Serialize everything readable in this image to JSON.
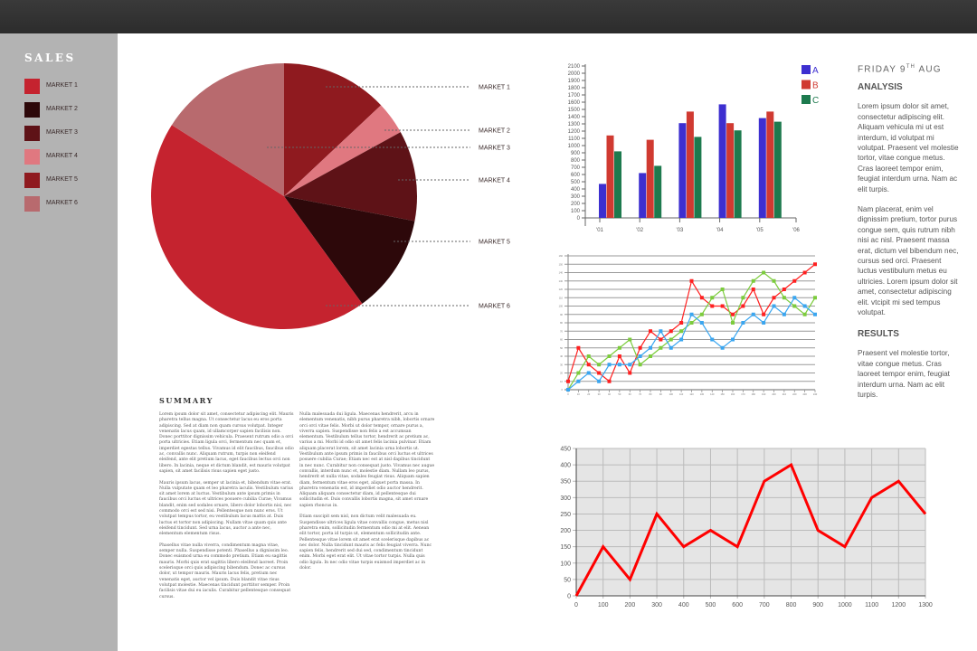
{
  "sidebar": {
    "title": "SALES",
    "legend": [
      {
        "label": "MARKET 1",
        "color": "#c5232f"
      },
      {
        "label": "MARKET 2",
        "color": "#2d080a"
      },
      {
        "label": "MARKET 3",
        "color": "#5e1217"
      },
      {
        "label": "MARKET 4",
        "color": "#e07880"
      },
      {
        "label": "MARKET 5",
        "color": "#8f1a1f"
      },
      {
        "label": "MARKET 6",
        "color": "#b86a6e"
      }
    ]
  },
  "summary": {
    "title": "SUMMARY",
    "paragraphs": [
      "Lorem ipsum dolor sit amet, consectetur adipiscing elit. Mauris pharetra tellus magna. Ut consectetur lacus eu eros porta adipiscing. Sed at diam non quam cursus volutpat. Integer venenatis lacus quam, id ullamcorper sapien facilisis non. Donec porttitor dignissim vehicula. Praesent rutrum odio a orci porta ultricies. Etiam ligula orci, fermentum nec quam et, imperdiet egestas tellus. Vivamus id elit faucibus, faucibus odio ac, convallis nunc. Aliquam rutrum, turpis non eleifend eleifend, ante elit pretium lacus, eget faucibus lectus orci non libero. In lacinia, neque et dictum blandit, est mauris volutpat sapien, sit amet facilisis risus sapien eget justo.",
      "Mauris ipsum lacus, semper ut lacinia et, bibendum vitae erat. Nulla vulputate quam et leo pharetra iaculis. Vestibulum varius sit amet lorem at luctus. Vestibulum ante ipsum primis in faucibus orci luctus et ultrices posuere cubilia Curae; Vivamus blandit, enim sed sodales ornare, libero dolor lobortis nisi, nec commodo orci est sed nisi. Pellentesque non nunc eros. Ut volutpat tempus tortor, eu vestibulum lacus mattis at. Duis luctus et tortor non adipiscing. Nullam vitae quam quis ante eleifend tincidunt. Sed urna lacus, auctor a ante nec, elementum elementum risus.",
      "Phasellus vitae nulla viverra, condimentum magna vitae, semper nulla. Suspendisse potenti. Phasellus a dignissim leo. Donec euismod urna eu commodo pretium. Etiam eu sagittis mauris. Morbi quis erat sagittis libero eleifend laoreet. Proin scelerisque orci quis adipiscing bibendum. Donec ac cursus dolor, ut tempor mauris. Mauris lacus felis, pretium nec venenatis eget, auctor vel ipsum. Duis blandit vitae risus volutpat molestie. Maecenas tincidunt porttitor semper. Proin facilisis vitae dui eu iaculis. Curabitur pellentesque consequat cursus.",
      "Nulla malesuada dui ligula. Maecenas hendrerit, arcu in elementum venenatis, nibh purus pharetra nibh, lobortis ornare orci orci vitae felis. Morbi ut dolor tempor, ornare purus a, viverra sapien. Suspendisse non felis a est accumsan elementum. Vestibulum tellus tortor, hendrerit ac pretium ac, varius a mi. Morbi id odio sit amet felis lacinia pulvinar. Etiam aliquam placerat lorem, sit amet lacinia urna lobortis ut. Vestibulum ante ipsum primis in faucibus orci luctus et ultrices posuere cubilia Curae; Etiam nec est at nisl dapibus tincidunt in nec nunc. Curabitur non consequat justo. Vivamus nec augue convallis, interdum nunc et, molestie diam. Nullam leo purus, hendrerit et nulla vitae, sodales feugiat risus. Aliquam sapien diam, fermentum vitae eros eget, aliquet porta massa. In pharetra venenatis est, id imperdiet odio auctor hendrerit. Aliquam aliquam consectetur diam, id pellentesque dui sollicitudin et. Duis convallis lobortis magna, sit amet ornare sapien rhoncus in.",
      "Etiam suscipit sem nisl, non dictum velit malesuada eu. Suspendisse ultrices ligula vitae convallis congue, metus nisl pharetra enim, sollicitudin fermentum odio mi at elit. Aenean elit tortor, porta id turpis ut, elementum sollicitudin ante. Pellentesque vitae lorem sit amet erat scelerisque dapibus ac nec dolor. Nulla tincidunt mauris ac felis feugiat viverra. Nunc sapien felis, hendrerit sed dui sed, condimentum tincidunt enim. Morbi eget erat elit. Ut vitae tortor turpis. Nulla quis odio ligula. In nec odio vitae turpis euismod imperdiet ac in dolor."
    ]
  },
  "right": {
    "date": "FRIDAY 9",
    "date_sup": "TH",
    "date_month": " AUG",
    "analysis_title": "ANALYSIS",
    "analysis_p1": "Lorem ipsum dolor sit amet, consectetur adipiscing elit. Aliquam vehicula mi ut est interdum, id volutpat mi volutpat. Praesent vel molestie tortor, vitae congue metus. Cras laoreet tempor enim, feugiat interdum urna. Nam ac elit turpis.",
    "analysis_p2": "Nam placerat, enim vel dignissim pretium, tortor purus congue sem, quis rutrum nibh nisi ac nisl. Praesent massa erat, dictum vel bibendum nec, cursus sed orci. Praesent luctus vestibulum metus eu ultricies. Lorem ipsum dolor sit amet, consectetur adipiscing elit. vtcipit mi sed tempus volutpat.",
    "results_title": "RESULTS",
    "results_p": "Praesent vel molestie tortor, vitae congue metus. Cras laoreet tempor enim, feugiat interdum urna. Nam ac elit turpis."
  },
  "chart_data": [
    {
      "type": "pie",
      "slices": [
        {
          "label": "MARKET 5",
          "color": "#8f1a1f",
          "value": 13
        },
        {
          "label": "MARKET 4",
          "color": "#e07880",
          "value": 4
        },
        {
          "label": "MARKET 3",
          "color": "#5e1217",
          "value": 11
        },
        {
          "label": "MARKET 2",
          "color": "#2d080a",
          "value": 12
        },
        {
          "label": "MARKET 1",
          "color": "#c5232f",
          "value": 44
        },
        {
          "label": "MARKET 6",
          "color": "#b86a6e",
          "value": 16
        }
      ],
      "callouts": [
        "MARKET 1",
        "MARKET 2",
        "MARKET 3",
        "MARKET 4",
        "MARKET 5",
        "MARKET 6"
      ]
    },
    {
      "type": "bar",
      "categories": [
        "'01",
        "'02",
        "'03",
        "'04",
        "'05"
      ],
      "x_ticks": [
        "'01",
        "'02",
        "'03",
        "'04",
        "'05",
        "'06"
      ],
      "ylim": [
        0,
        2100
      ],
      "y_ticks": [
        0,
        100,
        200,
        300,
        400,
        500,
        600,
        700,
        800,
        900,
        1000,
        1100,
        1200,
        1300,
        1400,
        1500,
        1600,
        1700,
        1800,
        1900,
        2000,
        2100
      ],
      "legend": "top-right",
      "series": [
        {
          "name": "A",
          "color": "#3d2fd0",
          "values": [
            470,
            620,
            1310,
            1570,
            1380
          ]
        },
        {
          "name": "B",
          "color": "#d03a31",
          "values": [
            1140,
            1080,
            1470,
            1310,
            1470
          ]
        },
        {
          "name": "C",
          "color": "#1d7a4e",
          "values": [
            920,
            720,
            1120,
            1210,
            1330
          ]
        }
      ]
    },
    {
      "type": "line",
      "x": [
        0,
        10,
        20,
        30,
        40,
        50,
        60,
        70,
        80,
        90,
        100,
        110,
        120,
        130,
        140,
        150,
        160,
        170,
        180,
        190,
        200,
        210,
        220,
        230,
        240
      ],
      "ylim": [
        0,
        160
      ],
      "y_ticks": [
        0,
        10,
        20,
        30,
        40,
        50,
        60,
        70,
        80,
        90,
        100,
        110,
        120,
        130,
        140,
        150,
        160
      ],
      "grid": true,
      "series": [
        {
          "color": "#ff2020",
          "values": [
            10,
            50,
            30,
            20,
            10,
            40,
            20,
            50,
            70,
            60,
            70,
            80,
            130,
            110,
            100,
            100,
            90,
            100,
            120,
            90,
            110,
            120,
            130,
            140,
            150
          ]
        },
        {
          "color": "#7ccc3c",
          "values": [
            0,
            20,
            40,
            30,
            40,
            50,
            60,
            30,
            40,
            50,
            60,
            70,
            80,
            90,
            110,
            120,
            80,
            110,
            130,
            140,
            130,
            110,
            100,
            90,
            110
          ]
        },
        {
          "color": "#3aa6f0",
          "values": [
            0,
            10,
            20,
            10,
            30,
            30,
            30,
            40,
            50,
            70,
            50,
            60,
            90,
            80,
            60,
            50,
            60,
            80,
            90,
            80,
            100,
            90,
            110,
            100,
            90
          ]
        }
      ]
    },
    {
      "type": "line",
      "x": [
        0,
        100,
        200,
        300,
        400,
        500,
        600,
        700,
        800,
        900,
        1000,
        1100,
        1200,
        1300
      ],
      "xlim": [
        0,
        1300
      ],
      "ylim": [
        0,
        450
      ],
      "y_ticks": [
        0,
        50,
        100,
        150,
        200,
        250,
        300,
        350,
        400,
        450
      ],
      "grid": true,
      "background": "#e5e5e5",
      "series": [
        {
          "color": "#ff0000",
          "values": [
            0,
            150,
            50,
            250,
            150,
            200,
            150,
            350,
            400,
            200,
            150,
            300,
            350,
            250
          ]
        }
      ]
    }
  ]
}
